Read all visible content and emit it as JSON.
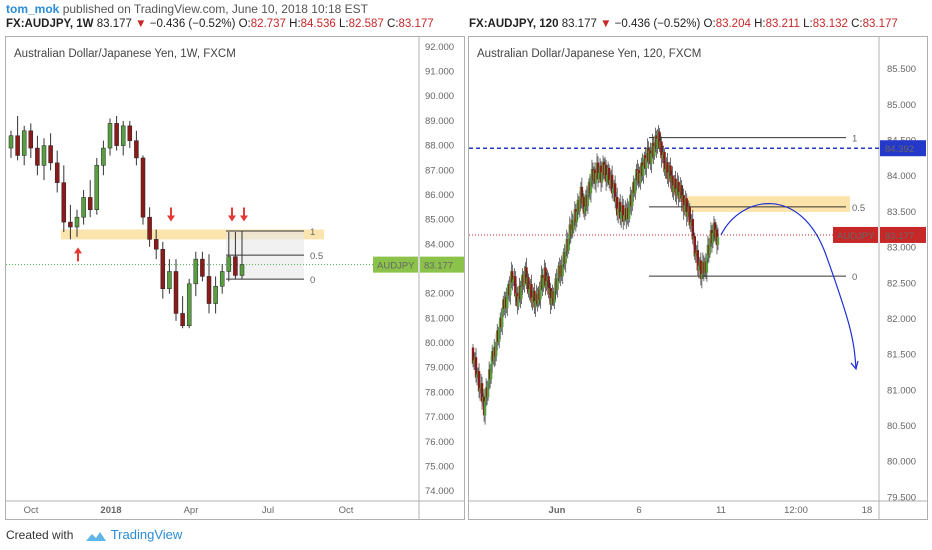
{
  "publish": {
    "author": "tom_mok",
    "text": "published on TradingView.com, June 10, 2018 10:18 EST"
  },
  "footer": {
    "created_with": "Created with",
    "brand": "TradingView"
  },
  "headers": [
    {
      "symbol": "FX:AUDJPY, 1W",
      "price": "83.177",
      "change": "−0.436 (−0.52%)",
      "o_label": "O:",
      "o": "82.737",
      "h_label": "H:",
      "h": "84.536",
      "l_label": "L:",
      "l": "82.587",
      "c_label": "C:",
      "c": "83.177"
    },
    {
      "symbol": "FX:AUDJPY, 120",
      "price": "83.177",
      "change": "−0.436 (−0.52%)",
      "o_label": "O:",
      "o": "83.204",
      "h_label": "H:",
      "h": "83.211",
      "l_label": "L:",
      "l": "83.132",
      "c_label": "C:",
      "c": "83.177"
    }
  ],
  "chart_data": [
    {
      "type": "candlestick",
      "title": "Australian Dollar/Japanese Yen, 1W, FXCM",
      "y_ticks": [
        "92.000",
        "91.000",
        "90.000",
        "89.000",
        "88.000",
        "87.000",
        "86.000",
        "85.000",
        "84.000",
        "83.000",
        "82.000",
        "81.000",
        "80.000",
        "79.000",
        "78.000",
        "77.000",
        "76.000",
        "75.000",
        "74.000"
      ],
      "x_ticks": [
        "Oct",
        "2018",
        "Apr",
        "Jul",
        "Oct"
      ],
      "ylim": [
        73.6,
        92.4
      ],
      "last_price_label": {
        "name": "AUDJPY",
        "value": "83.177"
      },
      "fib_labels": [
        "1",
        "0.5",
        "0"
      ],
      "fib_levels": [
        84.54,
        83.56,
        82.59
      ],
      "zone": [
        84.2,
        84.6
      ],
      "candles": [
        [
          87.9,
          88.6,
          87.5,
          88.4
        ],
        [
          88.4,
          89.2,
          87.4,
          87.6
        ],
        [
          87.6,
          88.8,
          87.2,
          88.6
        ],
        [
          88.6,
          88.9,
          87.5,
          87.9
        ],
        [
          87.9,
          88.4,
          86.8,
          87.2
        ],
        [
          87.2,
          88.3,
          86.6,
          88.0
        ],
        [
          88.0,
          88.5,
          87.0,
          87.3
        ],
        [
          87.3,
          87.8,
          86.1,
          86.5
        ],
        [
          86.5,
          87.2,
          84.5,
          84.9
        ],
        [
          84.9,
          85.6,
          84.2,
          84.7
        ],
        [
          84.7,
          85.4,
          84.3,
          85.1
        ],
        [
          85.1,
          86.2,
          84.8,
          85.9
        ],
        [
          85.9,
          86.6,
          85.1,
          85.4
        ],
        [
          85.4,
          87.5,
          85.2,
          87.2
        ],
        [
          87.2,
          88.2,
          86.8,
          87.9
        ],
        [
          87.9,
          89.1,
          87.6,
          88.9
        ],
        [
          88.9,
          89.2,
          87.8,
          88.0
        ],
        [
          88.0,
          89.0,
          87.6,
          88.8
        ],
        [
          88.8,
          89.0,
          87.9,
          88.2
        ],
        [
          88.2,
          88.6,
          87.2,
          87.5
        ],
        [
          87.5,
          87.6,
          84.8,
          85.1
        ],
        [
          85.1,
          85.5,
          83.9,
          84.2
        ],
        [
          84.2,
          84.6,
          83.4,
          83.8
        ],
        [
          83.8,
          84.1,
          81.8,
          82.2
        ],
        [
          82.2,
          83.4,
          82.0,
          82.9
        ],
        [
          82.9,
          83.4,
          80.9,
          81.2
        ],
        [
          81.2,
          81.9,
          80.6,
          80.7
        ],
        [
          80.7,
          82.6,
          80.6,
          82.4
        ],
        [
          82.4,
          83.7,
          81.9,
          83.4
        ],
        [
          83.4,
          83.7,
          82.5,
          82.7
        ],
        [
          82.7,
          83.6,
          81.2,
          81.6
        ],
        [
          81.6,
          82.7,
          81.2,
          82.3
        ],
        [
          82.3,
          83.2,
          82.0,
          82.9
        ],
        [
          82.9,
          84.5,
          82.5,
          83.5
        ],
        [
          83.5,
          84.5,
          82.6,
          82.74
        ],
        [
          82.74,
          84.54,
          82.59,
          83.18
        ]
      ]
    },
    {
      "type": "candlestick",
      "title": "Australian Dollar/Japanese Yen, 120, FXCM",
      "y_ticks": [
        "85.500",
        "85.000",
        "84.500",
        "84.000",
        "83.500",
        "83.000",
        "82.500",
        "82.000",
        "81.500",
        "81.000",
        "80.500",
        "80.000",
        "79.500"
      ],
      "x_ticks": [
        "Jun",
        "6",
        "11",
        "12:00",
        "18"
      ],
      "ylim": [
        79.45,
        85.95
      ],
      "price_labels": [
        {
          "name": "",
          "value": "84.392"
        },
        {
          "name": "AUDJPY",
          "value": "83.177"
        }
      ],
      "fib_labels": [
        "1",
        "0.5",
        "0"
      ],
      "fib_levels": [
        84.54,
        83.57,
        82.6
      ],
      "zone": [
        83.5,
        83.72
      ],
      "dashed_level": 84.392,
      "close_path": [
        81.6,
        81.3,
        81.0,
        80.8,
        81.1,
        81.4,
        81.7,
        81.9,
        82.2,
        82.4,
        82.6,
        82.3,
        82.4,
        82.6,
        82.5,
        82.3,
        82.2,
        82.5,
        82.6,
        82.4,
        82.3,
        82.5,
        82.7,
        82.9,
        83.1,
        83.4,
        83.5,
        83.7,
        83.6,
        83.8,
        84.0,
        84.1,
        84.0,
        84.1,
        84.0,
        83.8,
        83.6,
        83.5,
        83.4,
        83.6,
        83.8,
        84.0,
        84.1,
        84.2,
        84.3,
        84.4,
        84.5,
        84.4,
        84.1,
        84.0,
        83.9,
        83.8,
        83.7,
        83.6,
        83.4,
        83.1,
        82.8,
        82.6,
        82.8,
        83.1,
        83.2,
        83.18
      ],
      "projection_end": 81.3
    }
  ]
}
